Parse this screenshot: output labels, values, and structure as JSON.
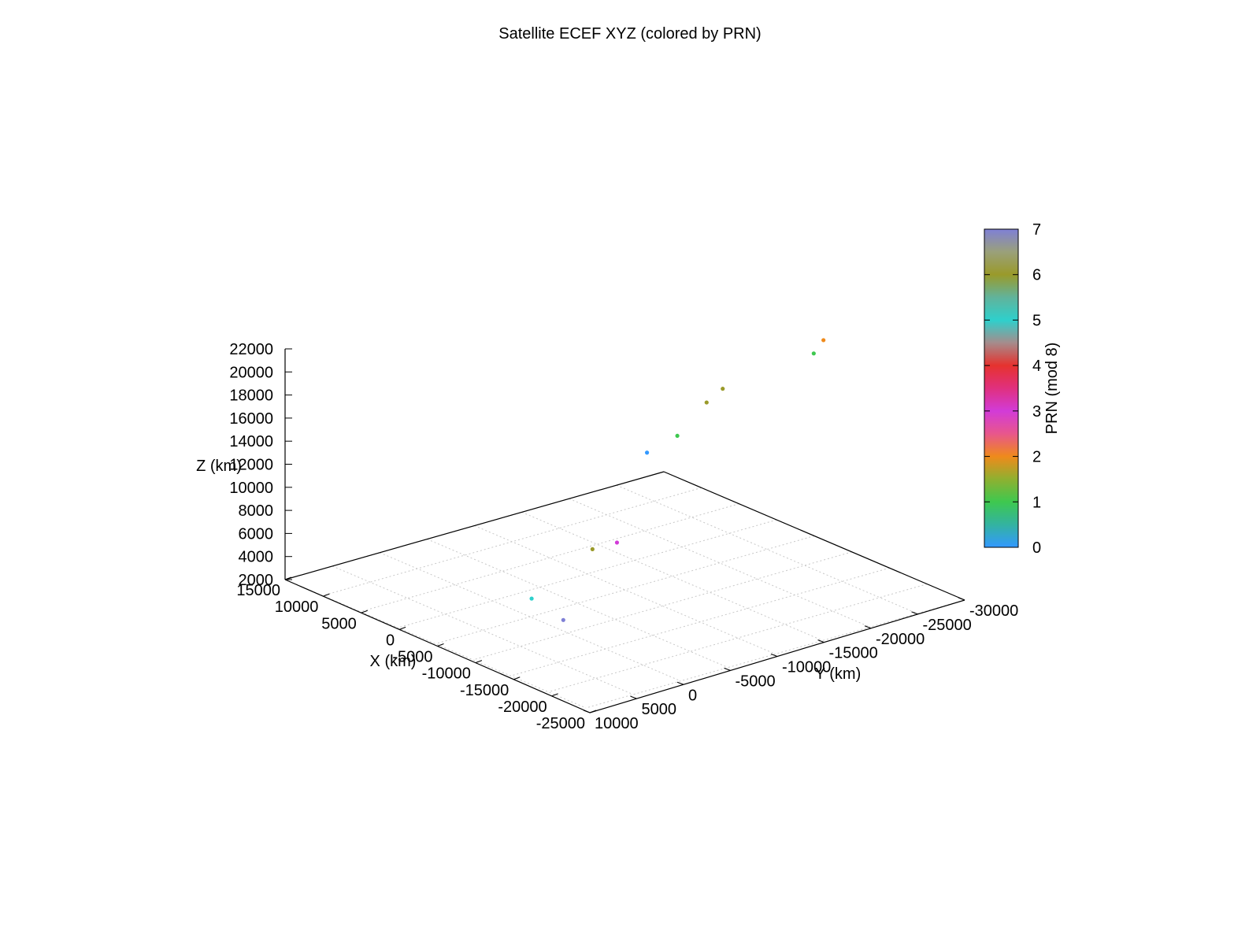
{
  "chart_data": {
    "type": "scatter",
    "title": "Satellite ECEF XYZ (colored by PRN)",
    "xlabel": "X (km)",
    "ylabel": "Y (km)",
    "zlabel": "Z (km)",
    "colorbar_label": "PRN (mod 8)",
    "xlim": [
      -25000,
      15000
    ],
    "ylim": [
      -30000,
      10000
    ],
    "zlim": [
      2000,
      22000
    ],
    "x_ticks": [
      15000,
      10000,
      5000,
      0,
      -5000,
      -10000,
      -15000,
      -20000,
      -25000
    ],
    "x_tick_labels": [
      "15000",
      "10000",
      "5000",
      "0",
      "-5000",
      "-10000",
      "-15000",
      "-20000",
      "-25000"
    ],
    "y_ticks": [
      10000,
      5000,
      0,
      -5000,
      -10000,
      -15000,
      -20000,
      -25000,
      -30000
    ],
    "y_tick_labels": [
      "10000",
      "5000",
      "0",
      "-5000",
      "-10000",
      "-15000",
      "-20000",
      "-25000",
      "-30000"
    ],
    "z_ticks": [
      22000,
      20000,
      18000,
      16000,
      14000,
      12000,
      10000,
      8000,
      6000,
      4000,
      2000
    ],
    "z_tick_labels": [
      "22000",
      "20000",
      "18000",
      "16000",
      "14000",
      "12000",
      "10000",
      "8000",
      "6000",
      "4000",
      "2000"
    ],
    "colorbar_range": [
      0,
      7
    ],
    "colorbar_ticks": [
      0,
      1,
      2,
      3,
      4,
      5,
      6,
      7
    ],
    "colorbar_tick_labels": [
      "0",
      "1",
      "2",
      "3",
      "4",
      "5",
      "6",
      "7"
    ],
    "colormap": [
      {
        "value": 0,
        "color": "#3399ff"
      },
      {
        "value": 0.5,
        "color": "#33b3a0"
      },
      {
        "value": 1,
        "color": "#3ec84f"
      },
      {
        "value": 1.5,
        "color": "#8fb030"
      },
      {
        "value": 2,
        "color": "#ef8a1b"
      },
      {
        "value": 2.5,
        "color": "#e8568c"
      },
      {
        "value": 3,
        "color": "#d23bd8"
      },
      {
        "value": 3.5,
        "color": "#e0307e"
      },
      {
        "value": 4,
        "color": "#e6322e"
      },
      {
        "value": 4.5,
        "color": "#a58c8c"
      },
      {
        "value": 5,
        "color": "#2ed0cc"
      },
      {
        "value": 5.5,
        "color": "#61b39b"
      },
      {
        "value": 6,
        "color": "#9a9a2a"
      },
      {
        "value": 6.5,
        "color": "#9aa07a"
      },
      {
        "value": 7,
        "color": "#7f80d6"
      }
    ],
    "grid": true,
    "colorbar_position": "right",
    "points": [
      {
        "x": -10400,
        "y": -26800,
        "z": 21100,
        "prn": 2
      },
      {
        "x": -10600,
        "y": -25600,
        "z": 20300,
        "prn": 1
      },
      {
        "x": -11200,
        "y": -15400,
        "z": 19900,
        "prn": 6
      },
      {
        "x": -9700,
        "y": -14900,
        "z": 18400,
        "prn": 6
      },
      {
        "x": -7700,
        "y": -13400,
        "z": 15300,
        "prn": 1
      },
      {
        "x": 1200,
        "y": -17400,
        "z": 10300,
        "prn": 0
      },
      {
        "x": -1500,
        "y": -12000,
        "z": 4600,
        "prn": 3
      },
      {
        "x": 1100,
        "y": -11500,
        "z": 3400,
        "prn": 6
      },
      {
        "x": -11800,
        "y": 2100,
        "z": 4300,
        "prn": 7
      },
      {
        "x": -2600,
        "y": -2000,
        "z": 2500,
        "prn": 5
      }
    ]
  }
}
